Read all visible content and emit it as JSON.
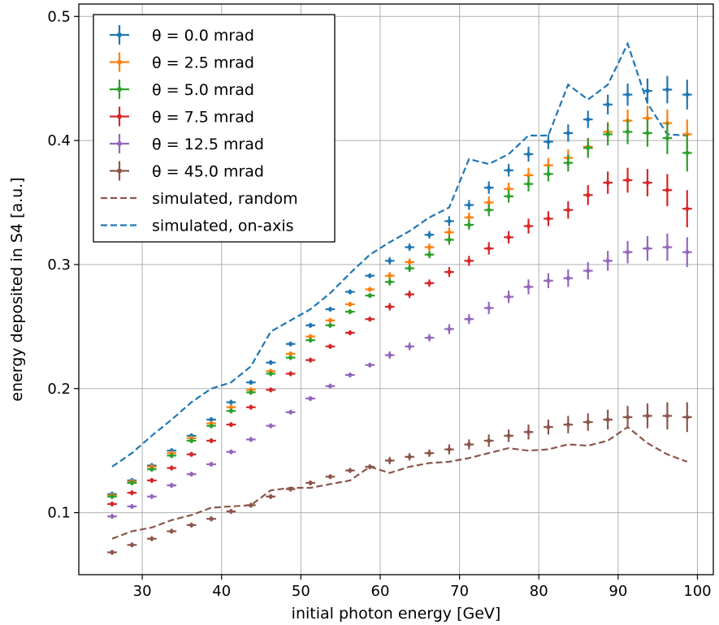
{
  "chart_data": {
    "type": "scatter",
    "title": "",
    "xlabel": "initial photon energy [GeV]",
    "ylabel": "energy deposited in S4 [a.u.]",
    "xlim": [
      22,
      102
    ],
    "ylim": [
      0.05,
      0.51
    ],
    "xticks": [
      30,
      40,
      50,
      60,
      70,
      80,
      90,
      100
    ],
    "yticks": [
      0.1,
      0.2,
      0.3,
      0.4,
      0.5
    ],
    "xtick_labels": [
      "30",
      "40",
      "50",
      "60",
      "70",
      "80",
      "90",
      "100"
    ],
    "ytick_labels": [
      "0.1",
      "0.2",
      "0.3",
      "0.4",
      "0.5"
    ],
    "grid": true,
    "legend_position": "top-left",
    "x": [
      26.2,
      28.7,
      31.2,
      33.7,
      36.2,
      38.7,
      41.2,
      43.7,
      46.2,
      48.7,
      51.2,
      53.7,
      56.2,
      58.7,
      61.2,
      63.7,
      66.2,
      68.7,
      71.2,
      73.7,
      76.2,
      78.7,
      81.2,
      83.7,
      86.2,
      88.7,
      91.2,
      93.7,
      96.2,
      98.7
    ],
    "x_err": 0.6,
    "series": [
      {
        "name": "θ = 0.0 mrad",
        "color": "#1f77b4",
        "style": "errorbar",
        "y": [
          0.115,
          0.126,
          0.138,
          0.15,
          0.162,
          0.175,
          0.189,
          0.205,
          0.221,
          0.236,
          0.251,
          0.264,
          0.278,
          0.291,
          0.303,
          0.314,
          0.324,
          0.335,
          0.348,
          0.362,
          0.376,
          0.389,
          0.399,
          0.406,
          0.417,
          0.429,
          0.437,
          0.44,
          0.441,
          0.437
        ],
        "y_err": [
          0.002,
          0.002,
          0.002,
          0.002,
          0.002,
          0.002,
          0.002,
          0.002,
          0.002,
          0.002,
          0.002,
          0.002,
          0.002,
          0.002,
          0.003,
          0.003,
          0.003,
          0.004,
          0.004,
          0.005,
          0.005,
          0.006,
          0.006,
          0.007,
          0.007,
          0.008,
          0.009,
          0.01,
          0.011,
          0.012
        ]
      },
      {
        "name": "θ = 2.5 mrad",
        "color": "#ff7f0e",
        "style": "errorbar",
        "y": [
          0.114,
          0.125,
          0.137,
          0.148,
          0.16,
          0.172,
          0.185,
          0.199,
          0.214,
          0.228,
          0.242,
          0.255,
          0.268,
          0.28,
          0.291,
          0.302,
          0.314,
          0.326,
          0.338,
          0.35,
          0.361,
          0.372,
          0.38,
          0.386,
          0.395,
          0.407,
          0.416,
          0.418,
          0.414,
          0.405
        ],
        "y_err": [
          0.002,
          0.002,
          0.002,
          0.002,
          0.002,
          0.002,
          0.002,
          0.002,
          0.002,
          0.002,
          0.002,
          0.002,
          0.002,
          0.002,
          0.003,
          0.003,
          0.003,
          0.004,
          0.004,
          0.005,
          0.005,
          0.006,
          0.006,
          0.007,
          0.007,
          0.008,
          0.009,
          0.01,
          0.011,
          0.012
        ]
      },
      {
        "name": "θ = 5.0 mrad",
        "color": "#2ca02c",
        "style": "errorbar",
        "y": [
          0.113,
          0.124,
          0.135,
          0.146,
          0.158,
          0.17,
          0.182,
          0.197,
          0.212,
          0.225,
          0.239,
          0.251,
          0.262,
          0.275,
          0.286,
          0.297,
          0.308,
          0.32,
          0.332,
          0.344,
          0.355,
          0.365,
          0.373,
          0.382,
          0.394,
          0.405,
          0.407,
          0.406,
          0.402,
          0.39
        ],
        "y_err": [
          0.002,
          0.002,
          0.002,
          0.002,
          0.002,
          0.002,
          0.002,
          0.002,
          0.002,
          0.002,
          0.002,
          0.002,
          0.002,
          0.002,
          0.003,
          0.003,
          0.003,
          0.004,
          0.004,
          0.005,
          0.005,
          0.006,
          0.006,
          0.007,
          0.008,
          0.009,
          0.01,
          0.011,
          0.013,
          0.015
        ]
      },
      {
        "name": "θ = 7.5 mrad",
        "color": "#d62728",
        "style": "errorbar",
        "y": [
          0.107,
          0.116,
          0.126,
          0.136,
          0.147,
          0.158,
          0.171,
          0.185,
          0.199,
          0.212,
          0.223,
          0.234,
          0.245,
          0.256,
          0.266,
          0.276,
          0.285,
          0.294,
          0.303,
          0.313,
          0.322,
          0.331,
          0.337,
          0.344,
          0.356,
          0.366,
          0.368,
          0.366,
          0.36,
          0.345
        ],
        "y_err": [
          0.002,
          0.002,
          0.002,
          0.002,
          0.002,
          0.002,
          0.002,
          0.002,
          0.002,
          0.002,
          0.002,
          0.002,
          0.002,
          0.002,
          0.003,
          0.003,
          0.003,
          0.004,
          0.004,
          0.005,
          0.005,
          0.006,
          0.006,
          0.007,
          0.008,
          0.009,
          0.01,
          0.011,
          0.013,
          0.015
        ]
      },
      {
        "name": "θ = 12.5 mrad",
        "color": "#9467bd",
        "style": "errorbar",
        "y": [
          0.097,
          0.105,
          0.113,
          0.122,
          0.131,
          0.139,
          0.149,
          0.159,
          0.17,
          0.181,
          0.192,
          0.202,
          0.211,
          0.219,
          0.227,
          0.234,
          0.241,
          0.248,
          0.256,
          0.265,
          0.274,
          0.282,
          0.287,
          0.289,
          0.295,
          0.303,
          0.31,
          0.313,
          0.314,
          0.31
        ],
        "y_err": [
          0.002,
          0.002,
          0.002,
          0.002,
          0.002,
          0.002,
          0.002,
          0.002,
          0.002,
          0.002,
          0.002,
          0.002,
          0.002,
          0.002,
          0.003,
          0.003,
          0.003,
          0.004,
          0.004,
          0.005,
          0.005,
          0.006,
          0.006,
          0.007,
          0.007,
          0.008,
          0.009,
          0.01,
          0.011,
          0.012
        ]
      },
      {
        "name": "θ = 45.0 mrad",
        "color": "#8c564b",
        "style": "errorbar",
        "y": [
          0.068,
          0.074,
          0.079,
          0.085,
          0.09,
          0.095,
          0.101,
          0.106,
          0.113,
          0.119,
          0.124,
          0.129,
          0.134,
          0.137,
          0.142,
          0.145,
          0.148,
          0.151,
          0.155,
          0.158,
          0.162,
          0.165,
          0.169,
          0.171,
          0.173,
          0.175,
          0.177,
          0.178,
          0.178,
          0.177
        ],
        "y_err": [
          0.002,
          0.002,
          0.002,
          0.002,
          0.002,
          0.002,
          0.002,
          0.002,
          0.002,
          0.002,
          0.002,
          0.002,
          0.002,
          0.002,
          0.003,
          0.003,
          0.003,
          0.004,
          0.004,
          0.005,
          0.005,
          0.006,
          0.006,
          0.007,
          0.007,
          0.008,
          0.009,
          0.01,
          0.011,
          0.012
        ]
      },
      {
        "name": "simulated, random",
        "color": "#8c564b",
        "style": "dashed",
        "y": [
          0.079,
          0.085,
          0.088,
          0.094,
          0.098,
          0.104,
          0.105,
          0.106,
          0.118,
          0.12,
          0.12,
          0.123,
          0.126,
          0.137,
          0.132,
          0.137,
          0.14,
          0.141,
          0.144,
          0.148,
          0.152,
          0.15,
          0.151,
          0.155,
          0.154,
          0.158,
          0.169,
          0.156,
          0.147,
          0.141
        ]
      },
      {
        "name": "simulated, on-axis",
        "color": "#1f77b4",
        "style": "dashed",
        "y": [
          0.137,
          0.148,
          0.162,
          0.175,
          0.189,
          0.2,
          0.205,
          0.218,
          0.246,
          0.255,
          0.264,
          0.277,
          0.293,
          0.308,
          0.318,
          0.327,
          0.338,
          0.346,
          0.385,
          0.381,
          0.389,
          0.404,
          0.404,
          0.445,
          0.433,
          0.445,
          0.478,
          0.43,
          0.405,
          0.404
        ]
      }
    ]
  }
}
